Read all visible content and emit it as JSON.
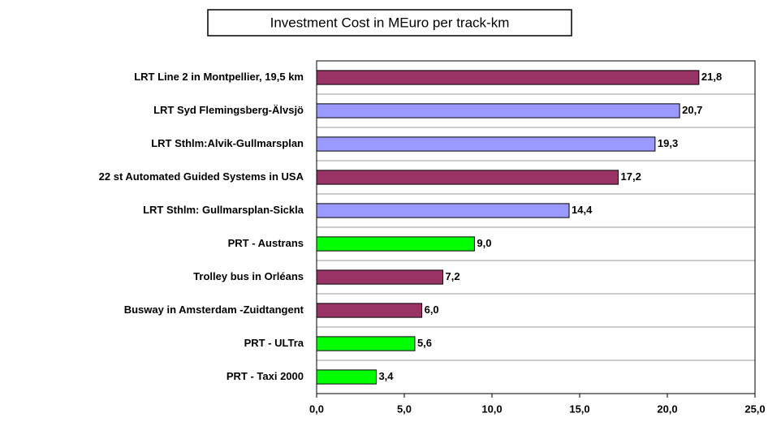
{
  "chart_data": {
    "type": "barh",
    "title": "Investment Cost in MEuro per track-km",
    "categories": [
      "LRT Line 2 in Montpellier, 19,5  km",
      "LRT Syd Flemingsberg-Älvsjö",
      "LRT Sthlm:Alvik-Gullmarsplan",
      "22 st Automated Guided Systems in USA",
      "LRT Sthlm: Gullmarsplan-Sickla",
      "PRT - Austrans",
      "Trolley bus in Orléans",
      "Busway in Amsterdam -Zuidtangent",
      "PRT - ULTra",
      "PRT - Taxi 2000"
    ],
    "values": [
      21.8,
      20.7,
      19.3,
      17.2,
      14.4,
      9.0,
      7.2,
      6.0,
      5.6,
      3.4
    ],
    "value_labels": [
      "21,8",
      "20,7",
      "19,3",
      "17,2",
      "14,4",
      "9,0",
      "7,2",
      "6,0",
      "5,6",
      "3,4"
    ],
    "colors": [
      "#993366",
      "#9999ff",
      "#9999ff",
      "#993366",
      "#9999ff",
      "#00ff00",
      "#993366",
      "#993366",
      "#00ff00",
      "#00ff00"
    ],
    "xlim": [
      0,
      25
    ],
    "xticks": [
      {
        "value": 0,
        "label": "0,0"
      },
      {
        "value": 5,
        "label": "5,0"
      },
      {
        "value": 10,
        "label": "10,0"
      },
      {
        "value": 15,
        "label": "15,0"
      },
      {
        "value": 20,
        "label": "20,0"
      },
      {
        "value": 25,
        "label": "25,0"
      }
    ]
  }
}
